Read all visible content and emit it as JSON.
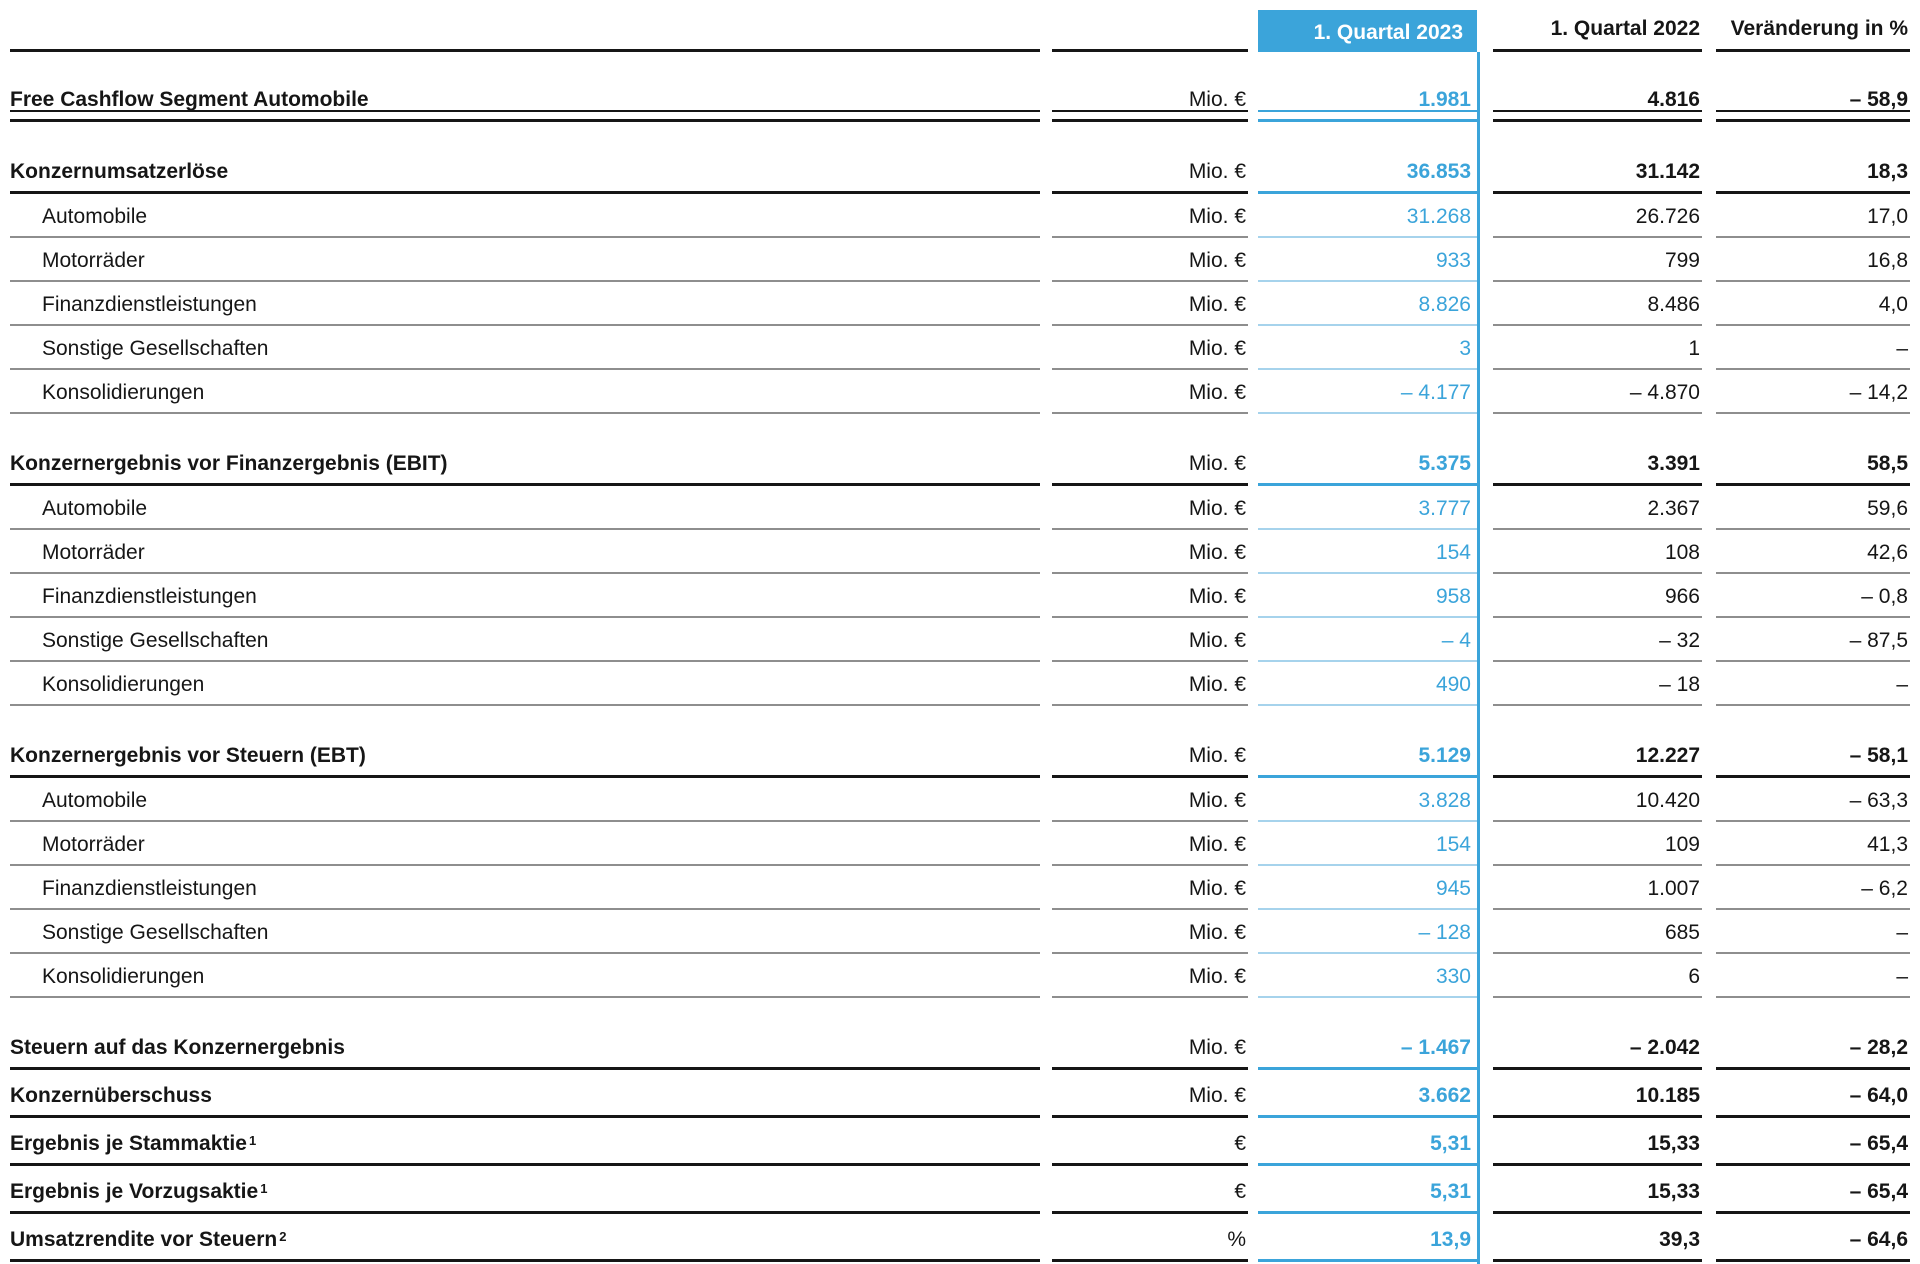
{
  "colors": {
    "accent_blue": "#3ba4da",
    "light_blue_rule": "#a6d3ec",
    "text": "#161616",
    "gray_rule": "#8e8e8e",
    "header_text_on_accent": "#ffffff"
  },
  "columns": {
    "q2023": "1. Quartal 2023",
    "q2022": "1. Quartal 2022",
    "change": "Veränderung in %"
  },
  "rows": [
    {
      "label": "Free Cashflow Segment Automobile",
      "footnote": "",
      "unit": "Mio. €",
      "q2023": "1.981",
      "q2022": "4.816",
      "change": "– 58,9",
      "style": "section",
      "section_start": false,
      "first": true,
      "double_rule": true
    },
    {
      "label": "Konzernumsatzerlöse",
      "footnote": "",
      "unit": "Mio. €",
      "q2023": "36.853",
      "q2022": "31.142",
      "change": "18,3",
      "style": "section",
      "section_start": true
    },
    {
      "label": "Automobile",
      "footnote": "",
      "unit": "Mio. €",
      "q2023": "31.268",
      "q2022": "26.726",
      "change": "17,0",
      "style": "sub"
    },
    {
      "label": "Motorräder",
      "footnote": "",
      "unit": "Mio. €",
      "q2023": "933",
      "q2022": "799",
      "change": "16,8",
      "style": "sub"
    },
    {
      "label": "Finanzdienstleistungen",
      "footnote": "",
      "unit": "Mio. €",
      "q2023": "8.826",
      "q2022": "8.486",
      "change": "4,0",
      "style": "sub"
    },
    {
      "label": "Sonstige Gesellschaften",
      "footnote": "",
      "unit": "Mio. €",
      "q2023": "3",
      "q2022": "1",
      "change": "–",
      "style": "sub"
    },
    {
      "label": "Konsolidierungen",
      "footnote": "",
      "unit": "Mio. €",
      "q2023": "– 4.177",
      "q2022": "– 4.870",
      "change": "– 14,2",
      "style": "sub"
    },
    {
      "label": "Konzernergebnis vor Finanzergebnis (EBIT)",
      "footnote": "",
      "unit": "Mio. €",
      "q2023": "5.375",
      "q2022": "3.391",
      "change": "58,5",
      "style": "section",
      "section_start": true
    },
    {
      "label": "Automobile",
      "footnote": "",
      "unit": "Mio. €",
      "q2023": "3.777",
      "q2022": "2.367",
      "change": "59,6",
      "style": "sub"
    },
    {
      "label": "Motorräder",
      "footnote": "",
      "unit": "Mio. €",
      "q2023": "154",
      "q2022": "108",
      "change": "42,6",
      "style": "sub"
    },
    {
      "label": "Finanzdienstleistungen",
      "footnote": "",
      "unit": "Mio. €",
      "q2023": "958",
      "q2022": "966",
      "change": "– 0,8",
      "style": "sub"
    },
    {
      "label": "Sonstige Gesellschaften",
      "footnote": "",
      "unit": "Mio. €",
      "q2023": "– 4",
      "q2022": "– 32",
      "change": "– 87,5",
      "style": "sub"
    },
    {
      "label": "Konsolidierungen",
      "footnote": "",
      "unit": "Mio. €",
      "q2023": "490",
      "q2022": "– 18",
      "change": "–",
      "style": "sub"
    },
    {
      "label": "Konzernergebnis vor Steuern (EBT)",
      "footnote": "",
      "unit": "Mio. €",
      "q2023": "5.129",
      "q2022": "12.227",
      "change": "– 58,1",
      "style": "section",
      "section_start": true
    },
    {
      "label": "Automobile",
      "footnote": "",
      "unit": "Mio. €",
      "q2023": "3.828",
      "q2022": "10.420",
      "change": "– 63,3",
      "style": "sub"
    },
    {
      "label": "Motorräder",
      "footnote": "",
      "unit": "Mio. €",
      "q2023": "154",
      "q2022": "109",
      "change": "41,3",
      "style": "sub"
    },
    {
      "label": "Finanzdienstleistungen",
      "footnote": "",
      "unit": "Mio. €",
      "q2023": "945",
      "q2022": "1.007",
      "change": "– 6,2",
      "style": "sub"
    },
    {
      "label": "Sonstige Gesellschaften",
      "footnote": "",
      "unit": "Mio. €",
      "q2023": "– 128",
      "q2022": "685",
      "change": "–",
      "style": "sub"
    },
    {
      "label": "Konsolidierungen",
      "footnote": "",
      "unit": "Mio. €",
      "q2023": "330",
      "q2022": "6",
      "change": "–",
      "style": "sub"
    },
    {
      "label": "Steuern auf das Konzernergebnis",
      "footnote": "",
      "unit": "Mio. €",
      "q2023": "– 1.467",
      "q2022": "– 2.042",
      "change": "– 28,2",
      "style": "section",
      "section_start": true
    },
    {
      "label": "Konzernüberschuss",
      "footnote": "",
      "unit": "Mio. €",
      "q2023": "3.662",
      "q2022": "10.185",
      "change": "– 64,0",
      "style": "section"
    },
    {
      "label": "Ergebnis je Stammaktie",
      "footnote": "1",
      "unit": "€",
      "q2023": "5,31",
      "q2022": "15,33",
      "change": "– 65,4",
      "style": "section"
    },
    {
      "label": "Ergebnis je Vorzugsaktie",
      "footnote": "1",
      "unit": "€",
      "q2023": "5,31",
      "q2022": "15,33",
      "change": "– 65,4",
      "style": "section"
    },
    {
      "label": "Umsatzrendite vor Steuern",
      "footnote": "2",
      "unit": "%",
      "q2023": "13,9",
      "q2022": "39,3",
      "change": "– 64,6",
      "style": "section"
    }
  ]
}
